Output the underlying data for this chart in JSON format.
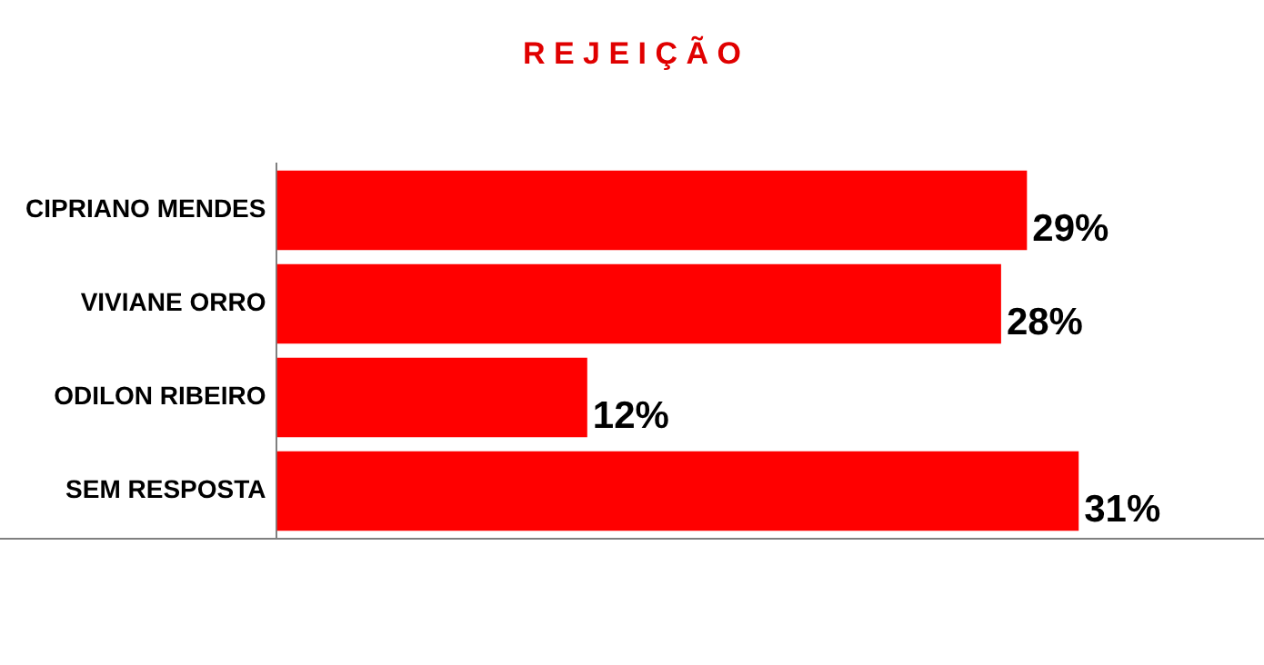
{
  "chart_data": {
    "type": "bar",
    "orientation": "horizontal",
    "title": "R E J E I Ç Ã O",
    "categories": [
      "CIPRIANO MENDES",
      "VIVIANE ORRO",
      "ODILON RIBEIRO",
      "SEM RESPOSTA"
    ],
    "values": [
      29,
      28,
      12,
      31
    ],
    "value_labels": [
      "29%",
      "28%",
      "12%",
      "31%"
    ],
    "color": "#ff0000",
    "tick_labels": "y",
    "legend": false
  }
}
